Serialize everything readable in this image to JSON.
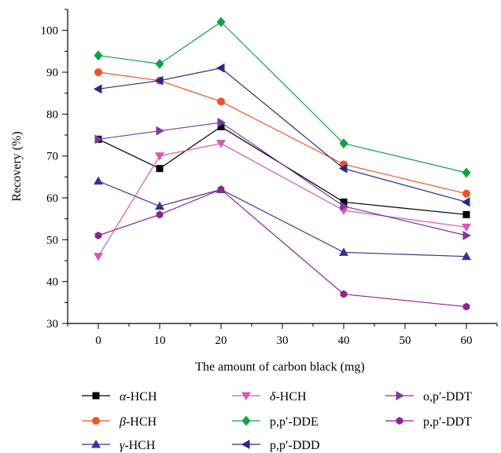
{
  "chart_data": {
    "type": "line",
    "title": "",
    "xlabel": "The amount of carbon black (mg)",
    "ylabel": "Recovery (%)",
    "xlim": [
      -5,
      65
    ],
    "ylim": [
      30,
      105
    ],
    "xticks": [
      0,
      10,
      20,
      30,
      40,
      50,
      60
    ],
    "yticks": [
      30,
      40,
      50,
      60,
      70,
      80,
      90,
      100
    ],
    "x": [
      0,
      10,
      20,
      40,
      60
    ],
    "legend_position": "bottom",
    "series": [
      {
        "name": "α-HCH",
        "prefix": "α",
        "suffix": "-HCH",
        "color": "#000000",
        "marker": "square",
        "values": [
          74,
          67,
          77,
          59,
          56
        ]
      },
      {
        "name": "β-HCH",
        "prefix": "β",
        "suffix": "-HCH",
        "color": "#f0522a",
        "marker": "circle",
        "values": [
          90,
          88,
          83,
          68,
          61
        ]
      },
      {
        "name": "γ-HCH",
        "prefix": "γ",
        "suffix": "-HCH",
        "color": "#33339a",
        "marker": "triangle-up",
        "values": [
          64,
          58,
          62,
          47,
          46
        ]
      },
      {
        "name": "δ-HCH",
        "prefix": "δ",
        "suffix": "-HCH",
        "color": "#d658b4",
        "marker": "triangle-down",
        "values": [
          46,
          70,
          73,
          57,
          53
        ]
      },
      {
        "name": "p,p′-DDE",
        "prefix": "",
        "suffix": "p,p′-DDE",
        "color": "#12a14a",
        "marker": "diamond",
        "values": [
          94,
          92,
          102,
          73,
          66
        ]
      },
      {
        "name": "p,p′-DDD",
        "prefix": "",
        "suffix": "p,p′-DDD",
        "color": "#252a8a",
        "marker": "triangle-left",
        "values": [
          86,
          88,
          91,
          67,
          59
        ]
      },
      {
        "name": "o,p′-DDT",
        "prefix": "",
        "suffix": "o,p′-DDT",
        "color": "#7a3aa0",
        "marker": "triangle-right",
        "values": [
          74,
          76,
          78,
          58,
          51
        ]
      },
      {
        "name": "p,p′-DDT",
        "prefix": "",
        "suffix": "p,p′-DDT",
        "color": "#8e2590",
        "marker": "hexagon",
        "values": [
          51,
          56,
          62,
          37,
          34
        ]
      }
    ]
  }
}
